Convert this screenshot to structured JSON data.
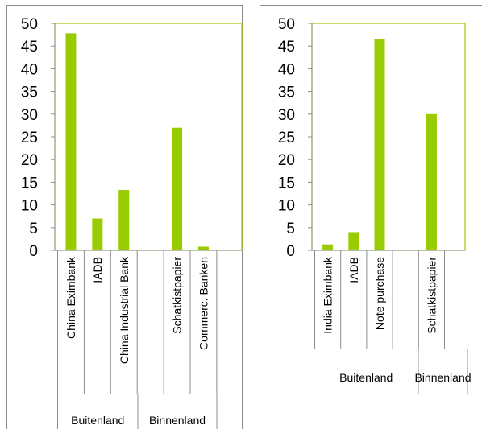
{
  "chart_data": [
    {
      "type": "bar",
      "categories": [
        "China Eximbank",
        "IADB",
        "China Industrial Bank",
        "",
        "Schatkistpapier",
        "Commerc. Banken"
      ],
      "values": [
        47.8,
        7.0,
        13.3,
        0,
        27.0,
        0.8
      ],
      "groups": [
        {
          "label": "Buitenland"
        },
        {
          "label": "Binnenland"
        }
      ],
      "ylim": [
        0,
        50
      ],
      "yticks": [
        0,
        5,
        10,
        15,
        20,
        25,
        30,
        35,
        40,
        45,
        50
      ],
      "xlabel": "",
      "ylabel": "",
      "title": "",
      "grid": false,
      "bar_color": "#99CC00",
      "plot_border_color": "#99CC00"
    },
    {
      "type": "bar",
      "categories": [
        "India Eximbank",
        "IADB",
        "Note purchase",
        "",
        "Schatkistpapier"
      ],
      "values": [
        1.3,
        4.0,
        46.6,
        0,
        30.0
      ],
      "groups": [
        {
          "label": "Buitenland"
        },
        {
          "label": "Binnenland"
        }
      ],
      "ylim": [
        0,
        50
      ],
      "yticks": [
        0,
        5,
        10,
        15,
        20,
        25,
        30,
        35,
        40,
        45,
        50
      ],
      "xlabel": "",
      "ylabel": "",
      "title": "",
      "grid": false,
      "bar_color": "#99CC00",
      "plot_border_color": "#99CC00"
    }
  ]
}
